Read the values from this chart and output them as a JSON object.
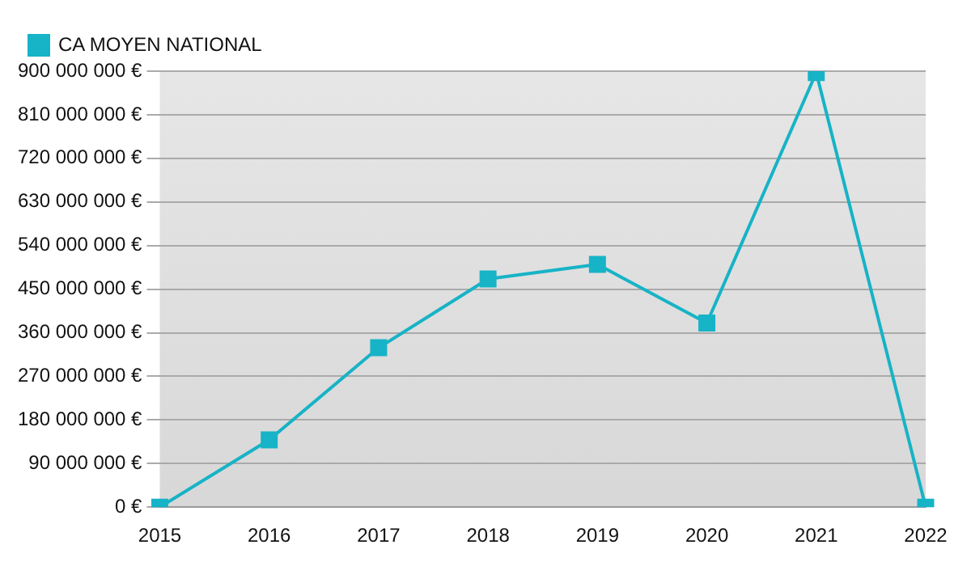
{
  "chart_data": {
    "type": "line",
    "categories": [
      "2015",
      "2016",
      "2017",
      "2018",
      "2019",
      "2020",
      "2021",
      "2022"
    ],
    "series": [
      {
        "name": "CA MOYEN NATIONAL",
        "color": "#17b3c6",
        "values": [
          0,
          139000000,
          329000000,
          471000000,
          501000000,
          380000000,
          897000000,
          0
        ]
      }
    ],
    "ylim": [
      0,
      900000000
    ],
    "yticks": [
      {
        "value": 0,
        "label": "0 €"
      },
      {
        "value": 90000000,
        "label": "90 000 000 €"
      },
      {
        "value": 180000000,
        "label": "180 000 000 €"
      },
      {
        "value": 270000000,
        "label": "270 000 000 €"
      },
      {
        "value": 360000000,
        "label": "360 000 000 €"
      },
      {
        "value": 450000000,
        "label": "450 000 000 €"
      },
      {
        "value": 540000000,
        "label": "540 000 000 €"
      },
      {
        "value": 630000000,
        "label": "630 000 000 €"
      },
      {
        "value": 720000000,
        "label": "720 000 000 €"
      },
      {
        "value": 810000000,
        "label": "810 000 000 €"
      },
      {
        "value": 900000000,
        "label": "900 000 000 €"
      }
    ],
    "grid": "y",
    "legend": "top left",
    "marker": "square",
    "line_style": "solid"
  }
}
